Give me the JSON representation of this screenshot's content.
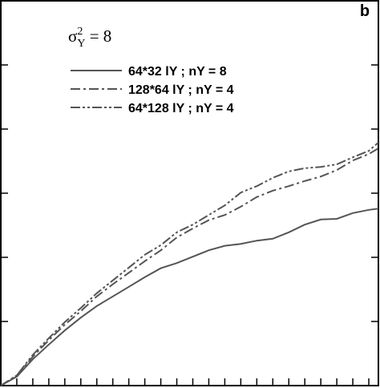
{
  "chart_data": {
    "type": "line",
    "panel_label": "b",
    "annotation": {
      "symbol": "σ",
      "superscript": "2",
      "subscript": "Y",
      "text": " = 8"
    },
    "x": [
      0,
      1,
      2,
      3,
      4,
      5,
      6,
      7,
      8,
      9,
      10,
      11,
      12,
      13,
      14,
      15,
      16,
      17,
      18,
      19,
      20,
      21,
      22,
      23,
      23.6
    ],
    "series": [
      {
        "name": "64*32 lY ; nY = 8",
        "color": "#555555",
        "dash": "solid",
        "values": [
          0,
          0.14,
          0.41,
          0.64,
          0.86,
          1.06,
          1.24,
          1.39,
          1.54,
          1.69,
          1.83,
          1.91,
          2.01,
          2.11,
          2.18,
          2.21,
          2.26,
          2.29,
          2.39,
          2.51,
          2.59,
          2.6,
          2.69,
          2.74,
          2.76
        ]
      },
      {
        "name": "128*64 lY ; nY = 4",
        "color": "#555555",
        "dash": "dashdot",
        "values": [
          0,
          0.16,
          0.45,
          0.71,
          0.95,
          1.16,
          1.39,
          1.58,
          1.76,
          1.94,
          2.11,
          2.31,
          2.45,
          2.58,
          2.66,
          2.79,
          2.94,
          3.04,
          3.11,
          3.19,
          3.26,
          3.36,
          3.51,
          3.61,
          3.7
        ]
      },
      {
        "name": "64*128 lY ; nY = 4",
        "color": "#555555",
        "dash": "dashdotdot",
        "values": [
          0,
          0.16,
          0.48,
          0.74,
          0.99,
          1.21,
          1.44,
          1.64,
          1.84,
          2.04,
          2.19,
          2.39,
          2.51,
          2.66,
          2.81,
          3.01,
          3.11,
          3.24,
          3.34,
          3.39,
          3.41,
          3.45,
          3.56,
          3.66,
          3.79
        ]
      }
    ],
    "xlim": [
      0,
      23.6
    ],
    "ylim": [
      0,
      6
    ],
    "xticks": [
      1,
      2,
      3,
      4,
      5,
      6,
      7,
      8,
      9,
      10,
      11,
      12,
      13,
      14,
      15,
      16,
      17,
      18,
      19,
      20,
      21,
      22,
      23
    ],
    "yticks": [
      1,
      2,
      3,
      4,
      5
    ]
  }
}
